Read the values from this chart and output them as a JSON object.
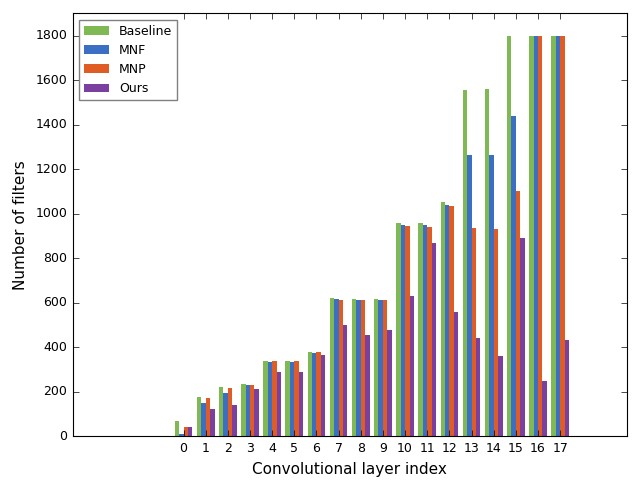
{
  "categories": [
    0,
    1,
    2,
    3,
    4,
    5,
    6,
    7,
    8,
    9,
    10,
    11,
    12,
    13,
    14,
    15,
    16,
    17
  ],
  "series": {
    "Baseline": [
      70,
      175,
      220,
      235,
      340,
      340,
      380,
      620,
      615,
      615,
      960,
      960,
      1050,
      1555,
      1560,
      1800,
      1800,
      1800
    ],
    "MNF": [
      10,
      150,
      195,
      230,
      335,
      335,
      375,
      615,
      610,
      610,
      950,
      950,
      1040,
      1265,
      1265,
      1440,
      1800,
      1800
    ],
    "MNP": [
      40,
      170,
      215,
      230,
      340,
      340,
      380,
      610,
      610,
      610,
      945,
      940,
      1035,
      935,
      930,
      1100,
      1800,
      1800
    ],
    "Ours": [
      40,
      120,
      140,
      210,
      290,
      290,
      365,
      500,
      455,
      475,
      630,
      870,
      560,
      440,
      360,
      890,
      250,
      430
    ]
  },
  "colors": {
    "Baseline": "#7EB954",
    "MNF": "#3A6FC4",
    "MNP": "#E05C25",
    "Ours": "#7B3FA0"
  },
  "ylabel": "Number of filters",
  "xlabel": "Convolutional layer index",
  "ylim": [
    0,
    1900
  ],
  "yticks": [
    0,
    200,
    400,
    600,
    800,
    1000,
    1200,
    1400,
    1600,
    1800
  ],
  "legend_order": [
    "Baseline",
    "MNF",
    "MNP",
    "Ours"
  ],
  "bar_width": 0.2,
  "figsize": [
    6.4,
    4.9
  ],
  "dpi": 100
}
